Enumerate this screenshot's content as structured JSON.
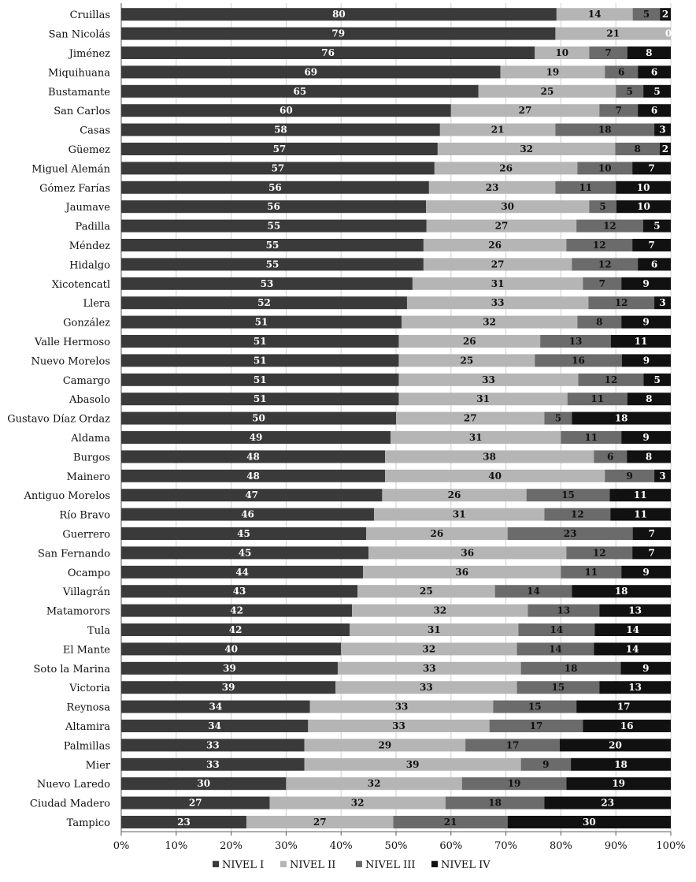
{
  "chart_data": {
    "type": "bar",
    "orientation": "horizontal",
    "stacked": "percent",
    "title": "",
    "xlabel": "",
    "ylabel": "",
    "xlim": [
      0,
      100
    ],
    "x_ticks": [
      "0%",
      "10%",
      "20%",
      "30%",
      "40%",
      "50%",
      "60%",
      "70%",
      "80%",
      "90%",
      "100%"
    ],
    "legend_position": "bottom",
    "categories": [
      "Cruillas",
      "San Nicolás",
      "Jiménez",
      "Miquihuana",
      "Bustamante",
      "San Carlos",
      "Casas",
      "Güemez",
      "Miguel Alemán",
      "Gómez Farías",
      "Jaumave",
      "Padilla",
      "Méndez",
      "Hidalgo",
      "Xicotencatl",
      "Llera",
      "González",
      "Valle Hermoso",
      "Nuevo Morelos",
      "Camargo",
      "Abasolo",
      "Gustavo Díaz Ordaz",
      "Aldama",
      "Burgos",
      "Mainero",
      "Antiguo Morelos",
      "Río Bravo",
      "Guerrero",
      "San Fernando",
      "Ocampo",
      "Villagrán",
      "Matamorors",
      "Tula",
      "El Mante",
      "Soto la Marina",
      "Victoria",
      "Reynosa",
      "Altamira",
      "Palmillas",
      "Mier",
      "Nuevo Laredo",
      "Ciudad Madero",
      "Tampico"
    ],
    "series": [
      {
        "name": "NIVEL I",
        "color": "#3a3a3a",
        "label_color": "#ffffff",
        "values": [
          80,
          79,
          76,
          69,
          65,
          60,
          58,
          57,
          57,
          56,
          56,
          55,
          55,
          55,
          53,
          52,
          51,
          51,
          51,
          51,
          51,
          50,
          49,
          48,
          48,
          47,
          46,
          45,
          45,
          44,
          43,
          42,
          42,
          40,
          39,
          39,
          34,
          34,
          33,
          33,
          30,
          27,
          23
        ]
      },
      {
        "name": "NIVEL II",
        "color": "#b5b5b5",
        "label_color": "#111111",
        "values": [
          14,
          21,
          10,
          19,
          25,
          27,
          21,
          32,
          26,
          23,
          30,
          27,
          26,
          27,
          31,
          33,
          32,
          26,
          25,
          33,
          31,
          27,
          31,
          38,
          40,
          26,
          31,
          26,
          36,
          36,
          25,
          32,
          31,
          32,
          33,
          33,
          33,
          33,
          29,
          39,
          32,
          32,
          27
        ]
      },
      {
        "name": "NIVEL III",
        "color": "#6b6b6b",
        "label_color": "#111111",
        "values": [
          5,
          0,
          7,
          6,
          5,
          7,
          18,
          8,
          10,
          11,
          5,
          12,
          12,
          12,
          7,
          12,
          8,
          13,
          16,
          12,
          11,
          5,
          11,
          6,
          9,
          15,
          12,
          23,
          12,
          11,
          14,
          13,
          14,
          14,
          18,
          15,
          15,
          17,
          17,
          9,
          19,
          18,
          21
        ]
      },
      {
        "name": "NIVEL IV",
        "color": "#111111",
        "label_color": "#ffffff",
        "values": [
          2,
          0,
          8,
          6,
          5,
          6,
          3,
          2,
          7,
          10,
          10,
          5,
          7,
          6,
          9,
          3,
          9,
          11,
          9,
          5,
          8,
          18,
          9,
          8,
          3,
          11,
          11,
          7,
          7,
          9,
          18,
          13,
          14,
          14,
          9,
          13,
          17,
          16,
          20,
          18,
          19,
          23,
          30
        ]
      }
    ],
    "shown_labels": [
      [
        "80",
        "14",
        "5",
        "2"
      ],
      [
        "79",
        "21",
        "",
        "0"
      ],
      [
        "76",
        "10",
        "7",
        "8"
      ],
      [
        "69",
        "19",
        "6",
        "6"
      ],
      [
        "65",
        "25",
        "5",
        "5"
      ],
      [
        "60",
        "27",
        "7",
        "6"
      ],
      [
        "58",
        "21",
        "18",
        "3"
      ],
      [
        "57",
        "32",
        "8",
        "2"
      ],
      [
        "57",
        "26",
        "10",
        "7"
      ],
      [
        "56",
        "23",
        "11",
        "10"
      ],
      [
        "56",
        "30",
        "5",
        "10"
      ],
      [
        "55",
        "27",
        "12",
        "5"
      ],
      [
        "55",
        "26",
        "12",
        "7"
      ],
      [
        "55",
        "27",
        "12",
        "6"
      ],
      [
        "53",
        "31",
        "7",
        "9"
      ],
      [
        "52",
        "33",
        "12",
        "3"
      ],
      [
        "51",
        "32",
        "8",
        "9"
      ],
      [
        "51",
        "26",
        "13",
        "11"
      ],
      [
        "51",
        "25",
        "16",
        "9"
      ],
      [
        "51",
        "33",
        "12",
        "5"
      ],
      [
        "51",
        "31",
        "11",
        "8"
      ],
      [
        "50",
        "27",
        "5",
        "18"
      ],
      [
        "49",
        "31",
        "11",
        "9"
      ],
      [
        "48",
        "38",
        "6",
        "8"
      ],
      [
        "48",
        "40",
        "9",
        "3"
      ],
      [
        "47",
        "26",
        "15",
        "11"
      ],
      [
        "46",
        "31",
        "12",
        "11"
      ],
      [
        "45",
        "26",
        "23",
        "7"
      ],
      [
        "45",
        "36",
        "12",
        "7"
      ],
      [
        "44",
        "36",
        "11",
        "9"
      ],
      [
        "43",
        "25",
        "14",
        "18"
      ],
      [
        "42",
        "32",
        "13",
        "13"
      ],
      [
        "42",
        "31",
        "14",
        "14"
      ],
      [
        "40",
        "32",
        "14",
        "14"
      ],
      [
        "39",
        "33",
        "18",
        "9"
      ],
      [
        "39",
        "33",
        "15",
        "13"
      ],
      [
        "34",
        "33",
        "15",
        "17"
      ],
      [
        "34",
        "33",
        "17",
        "16"
      ],
      [
        "33",
        "29",
        "17",
        "20"
      ],
      [
        "33",
        "39",
        "9",
        "18"
      ],
      [
        "30",
        "32",
        "19",
        "19"
      ],
      [
        "27",
        "32",
        "18",
        "23"
      ],
      [
        "23",
        "27",
        "21",
        "30"
      ]
    ]
  }
}
